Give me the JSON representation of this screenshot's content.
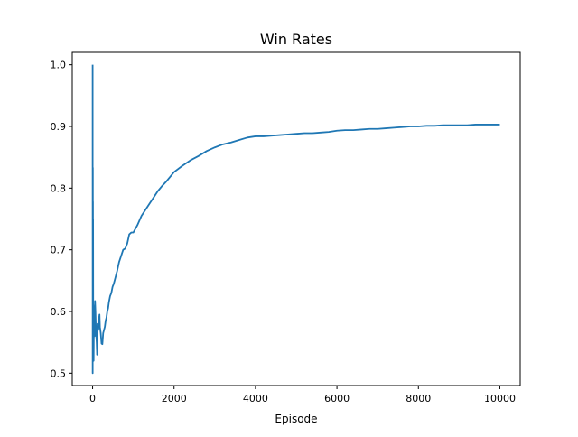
{
  "chart_data": {
    "type": "line",
    "title": "Win Rates",
    "xlabel": "Episode",
    "ylabel": "",
    "xlim": [
      -500,
      10500
    ],
    "ylim": [
      0.48,
      1.02
    ],
    "x_ticks": [
      0,
      2000,
      4000,
      6000,
      8000,
      10000
    ],
    "x_tick_labels": [
      "0",
      "2000",
      "4000",
      "6000",
      "8000",
      "10000"
    ],
    "y_ticks": [
      0.5,
      0.6,
      0.7,
      0.8,
      0.9,
      1.0
    ],
    "y_tick_labels": [
      "0.5",
      "0.6",
      "0.7",
      "0.8",
      "0.9",
      "1.0"
    ],
    "grid": false,
    "legend": "none",
    "line_color": "#1f77b4",
    "series": [
      {
        "x": [
          1,
          2,
          3,
          4,
          5,
          6,
          7,
          8,
          9,
          10,
          12,
          14,
          16,
          18,
          20,
          25,
          30,
          35,
          40,
          45,
          50,
          60,
          70,
          80,
          90,
          100,
          110,
          120,
          130,
          140,
          150,
          160,
          170,
          180,
          190,
          200,
          220,
          240,
          260,
          280,
          300,
          320,
          340,
          360,
          380,
          400,
          430,
          460,
          490,
          520,
          560,
          600,
          650,
          700,
          750,
          800,
          850,
          900,
          950,
          1000,
          1100,
          1200,
          1300,
          1400,
          1500,
          1600,
          1700,
          1800,
          1900,
          2000,
          2200,
          2400,
          2600,
          2800,
          3000,
          3200,
          3400,
          3600,
          3800,
          4000,
          4200,
          4400,
          4600,
          4800,
          5000,
          5200,
          5400,
          5600,
          5800,
          6000,
          6200,
          6400,
          6600,
          6800,
          7000,
          7200,
          7400,
          7600,
          7800,
          8000,
          8200,
          8400,
          8600,
          8800,
          9000,
          9200,
          9400,
          9600,
          9800,
          10000
        ],
        "y": [
          1.0,
          0.5,
          0.667,
          0.75,
          0.6,
          0.833,
          0.714,
          0.75,
          0.778,
          0.7,
          0.75,
          0.643,
          0.563,
          0.611,
          0.6,
          0.52,
          0.567,
          0.6,
          0.575,
          0.6,
          0.56,
          0.617,
          0.6,
          0.575,
          0.56,
          0.55,
          0.53,
          0.58,
          0.58,
          0.57,
          0.58,
          0.59,
          0.595,
          0.575,
          0.57,
          0.565,
          0.548,
          0.547,
          0.565,
          0.57,
          0.575,
          0.585,
          0.59,
          0.6,
          0.605,
          0.615,
          0.625,
          0.63,
          0.64,
          0.645,
          0.655,
          0.665,
          0.68,
          0.69,
          0.7,
          0.702,
          0.71,
          0.725,
          0.728,
          0.728,
          0.74,
          0.755,
          0.765,
          0.775,
          0.785,
          0.795,
          0.803,
          0.81,
          0.818,
          0.826,
          0.836,
          0.845,
          0.852,
          0.86,
          0.866,
          0.871,
          0.874,
          0.878,
          0.882,
          0.884,
          0.884,
          0.885,
          0.886,
          0.887,
          0.888,
          0.889,
          0.889,
          0.89,
          0.891,
          0.893,
          0.894,
          0.894,
          0.895,
          0.896,
          0.896,
          0.897,
          0.898,
          0.899,
          0.9,
          0.9,
          0.901,
          0.901,
          0.902,
          0.902,
          0.902,
          0.902,
          0.903,
          0.903,
          0.903,
          0.903
        ]
      }
    ]
  }
}
